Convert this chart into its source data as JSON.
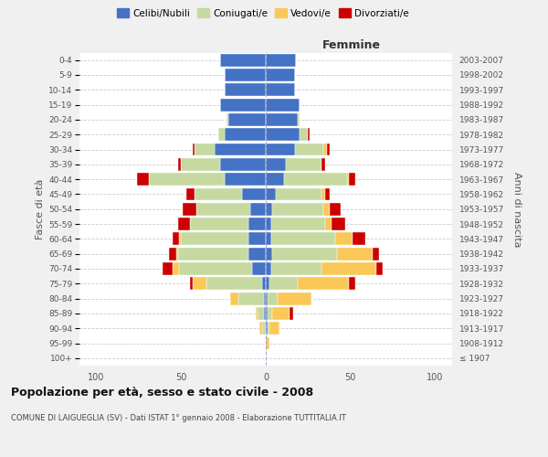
{
  "age_groups": [
    "100+",
    "95-99",
    "90-94",
    "85-89",
    "80-84",
    "75-79",
    "70-74",
    "65-69",
    "60-64",
    "55-59",
    "50-54",
    "45-49",
    "40-44",
    "35-39",
    "30-34",
    "25-29",
    "20-24",
    "15-19",
    "10-14",
    "5-9",
    "0-4"
  ],
  "birth_years": [
    "≤ 1907",
    "1908-1912",
    "1913-1917",
    "1918-1922",
    "1923-1927",
    "1928-1932",
    "1933-1937",
    "1938-1942",
    "1943-1947",
    "1948-1952",
    "1953-1957",
    "1958-1962",
    "1963-1967",
    "1968-1972",
    "1973-1977",
    "1978-1982",
    "1983-1987",
    "1988-1992",
    "1993-1997",
    "1998-2002",
    "2003-2007"
  ],
  "male": {
    "celibi": [
      0,
      0,
      0,
      1,
      1,
      2,
      8,
      10,
      10,
      10,
      9,
      14,
      24,
      27,
      30,
      24,
      22,
      27,
      24,
      24,
      27
    ],
    "coniugati": [
      0,
      0,
      2,
      4,
      15,
      33,
      43,
      42,
      40,
      35,
      32,
      28,
      45,
      23,
      12,
      4,
      1,
      0,
      0,
      0,
      0
    ],
    "vedovi": [
      0,
      0,
      2,
      1,
      5,
      8,
      4,
      1,
      1,
      0,
      0,
      0,
      0,
      0,
      0,
      0,
      0,
      0,
      0,
      0,
      0
    ],
    "divorziati": [
      0,
      0,
      0,
      0,
      0,
      2,
      6,
      4,
      4,
      7,
      8,
      5,
      7,
      2,
      1,
      0,
      0,
      0,
      0,
      0,
      0
    ]
  },
  "female": {
    "nubili": [
      0,
      0,
      1,
      1,
      1,
      2,
      3,
      4,
      3,
      3,
      4,
      6,
      11,
      12,
      17,
      20,
      19,
      20,
      17,
      17,
      18
    ],
    "coniugate": [
      0,
      0,
      1,
      3,
      6,
      17,
      30,
      38,
      38,
      32,
      30,
      27,
      37,
      21,
      17,
      5,
      1,
      0,
      0,
      0,
      0
    ],
    "vedove": [
      0,
      2,
      6,
      10,
      20,
      30,
      32,
      21,
      10,
      4,
      4,
      2,
      1,
      0,
      2,
      0,
      0,
      0,
      0,
      0,
      0
    ],
    "divorziate": [
      0,
      0,
      0,
      2,
      0,
      4,
      4,
      4,
      8,
      8,
      6,
      3,
      4,
      2,
      2,
      1,
      0,
      0,
      0,
      0,
      0
    ]
  },
  "colors": {
    "celibi": "#4472C4",
    "coniugati": "#C5D9A0",
    "vedovi": "#FAC858",
    "divorziati": "#CC0000"
  },
  "xlim": 110,
  "title": "Popolazione per età, sesso e stato civile - 2008",
  "subtitle": "COMUNE DI LAIGUEGLIA (SV) - Dati ISTAT 1° gennaio 2008 - Elaborazione TUTTITALIA.IT",
  "ylabel_left": "Fasce di età",
  "ylabel_right": "Anni di nascita",
  "xlabel_right": "Femmine",
  "bg_color": "#f0f0f0",
  "plot_bg": "#ffffff",
  "grid_color": "#cccccc"
}
